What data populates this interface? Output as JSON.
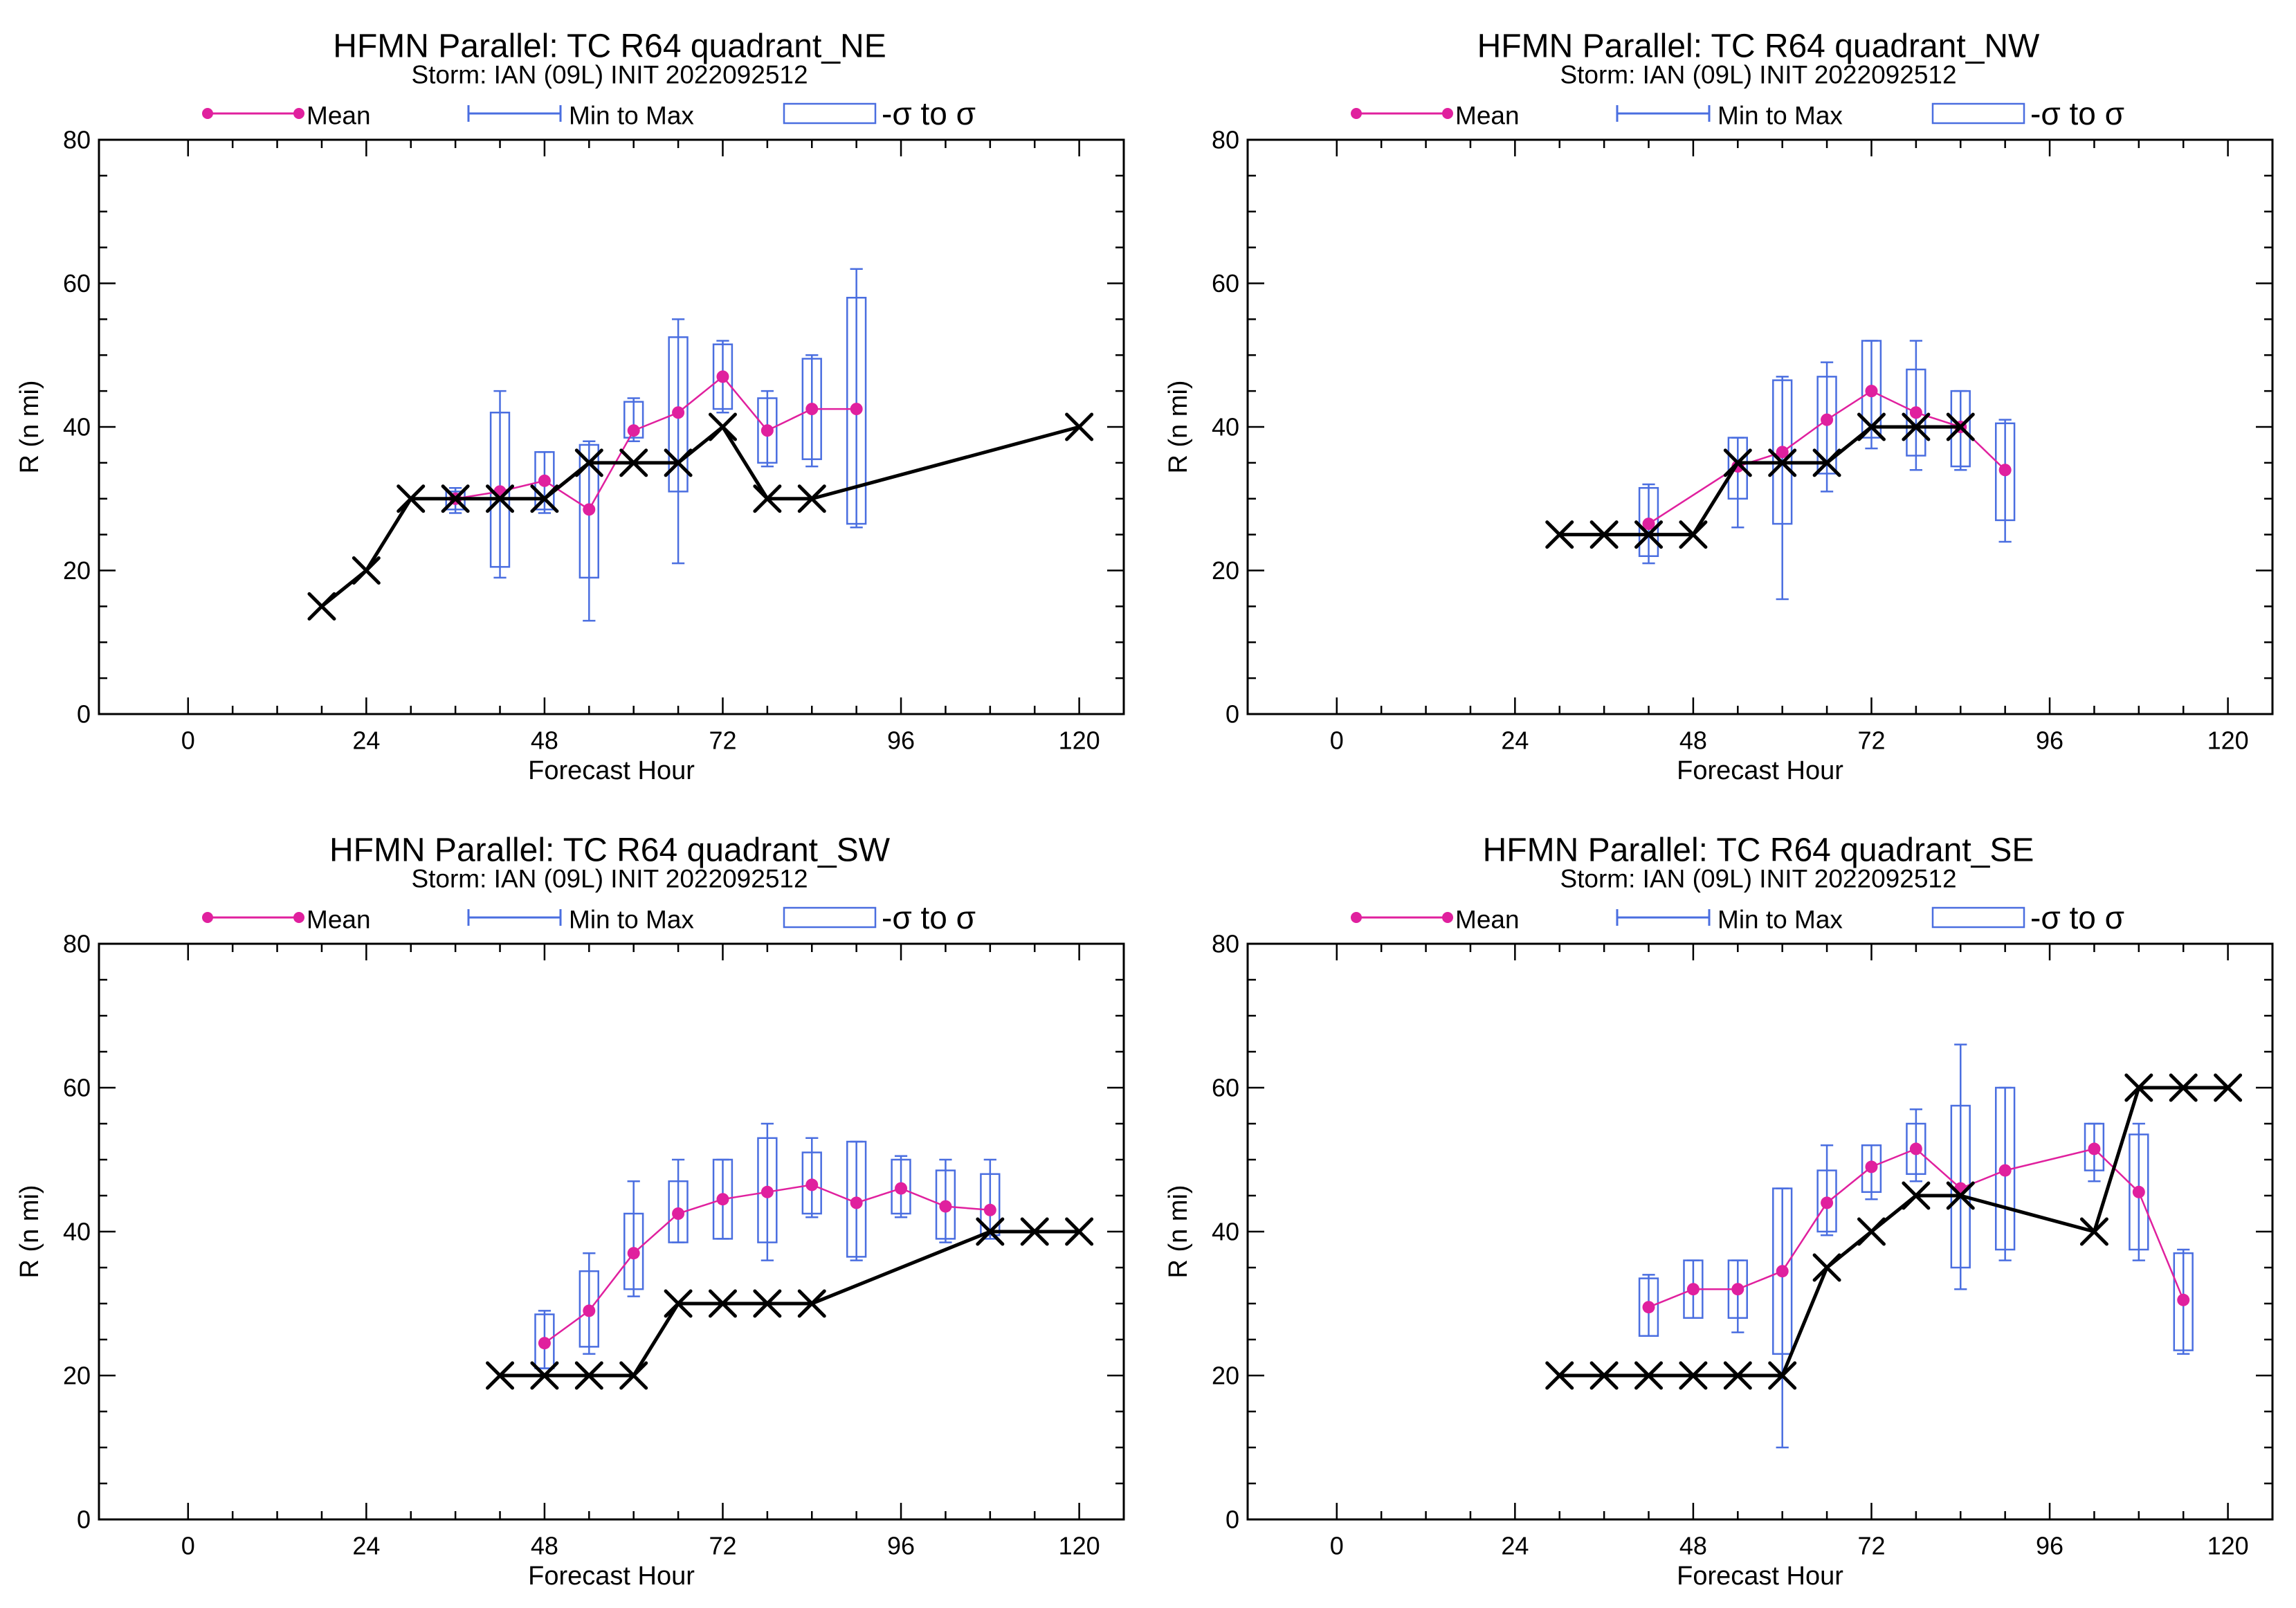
{
  "colors": {
    "mean": "#e0209e",
    "range": "#4a6ee0",
    "observed": "#000000",
    "frame": "#000000"
  },
  "legend": {
    "mean_label": "Mean",
    "range_label": "Min to Max",
    "sigma_label": "-σ to σ"
  },
  "chart_data": [
    {
      "type": "line",
      "title": "HFMN Parallel: TC  R64 quadrant_NE",
      "subtitle": "Storm: IAN (09L) INIT 2022092512",
      "xlabel": "Forecast Hour",
      "ylabel": "R (n mi)",
      "xlim": [
        -12,
        126
      ],
      "ylim": [
        0,
        80
      ],
      "xticks": [
        0,
        24,
        48,
        72,
        96,
        120
      ],
      "yticks": [
        0,
        20,
        40,
        60,
        80
      ],
      "observed": {
        "x": [
          18,
          24,
          30,
          36,
          42,
          48,
          54,
          60,
          66,
          72,
          78,
          84,
          120
        ],
        "y": [
          15,
          20,
          30,
          30,
          30,
          30,
          35,
          35,
          35,
          40,
          30,
          30,
          40
        ]
      },
      "ensemble": {
        "x": [
          36,
          42,
          48,
          54,
          60,
          66,
          72,
          78,
          84,
          90
        ],
        "mean": [
          30,
          31,
          32.5,
          28.5,
          39.5,
          42,
          47,
          39.5,
          42.5,
          42.5
        ],
        "min": [
          28,
          19,
          28,
          13,
          38,
          21,
          42,
          34.5,
          34.5,
          26
        ],
        "max": [
          31.5,
          45,
          36.5,
          38,
          44,
          55,
          52,
          45,
          50,
          62
        ],
        "sd_low": [
          28.5,
          20.5,
          28.5,
          19,
          38.5,
          31,
          42.5,
          35,
          35.5,
          26.5
        ],
        "sd_high": [
          31,
          42,
          36.5,
          37.5,
          43.5,
          52.5,
          51.5,
          44,
          49.5,
          58
        ]
      }
    },
    {
      "type": "line",
      "title": "HFMN Parallel: TC  R64 quadrant_NW",
      "subtitle": "Storm: IAN (09L) INIT 2022092512",
      "xlabel": "Forecast Hour",
      "ylabel": "R (n mi)",
      "xlim": [
        -12,
        126
      ],
      "ylim": [
        0,
        80
      ],
      "xticks": [
        0,
        24,
        48,
        72,
        96,
        120
      ],
      "yticks": [
        0,
        20,
        40,
        60,
        80
      ],
      "observed": {
        "x": [
          30,
          36,
          42,
          48,
          54,
          60,
          66,
          72,
          78,
          84
        ],
        "y": [
          25,
          25,
          25,
          25,
          35,
          35,
          35,
          40,
          40,
          40
        ]
      },
      "ensemble": {
        "x": [
          42,
          54,
          60,
          66,
          72,
          78,
          84,
          90
        ],
        "mean": [
          26.5,
          34.5,
          36.5,
          41,
          45,
          42,
          40,
          34
        ],
        "min": [
          21,
          26,
          16,
          31,
          37,
          34,
          34,
          24
        ],
        "max": [
          32,
          38.5,
          47,
          49,
          52,
          52,
          45,
          41
        ],
        "sd_low": [
          22,
          30,
          26.5,
          33.5,
          38.5,
          36,
          34.5,
          27
        ],
        "sd_high": [
          31.5,
          38.5,
          46.5,
          47,
          52,
          48,
          45,
          40.5
        ]
      }
    },
    {
      "type": "line",
      "title": "HFMN Parallel: TC  R64 quadrant_SW",
      "subtitle": "Storm: IAN (09L) INIT 2022092512",
      "xlabel": "Forecast Hour",
      "ylabel": "R (n mi)",
      "xlim": [
        -12,
        126
      ],
      "ylim": [
        0,
        80
      ],
      "xticks": [
        0,
        24,
        48,
        72,
        96,
        120
      ],
      "yticks": [
        0,
        20,
        40,
        60,
        80
      ],
      "observed": {
        "x": [
          42,
          48,
          54,
          60,
          66,
          72,
          78,
          84,
          108,
          114,
          120
        ],
        "y": [
          20,
          20,
          20,
          20,
          30,
          30,
          30,
          30,
          40,
          40,
          40
        ]
      },
      "ensemble": {
        "x": [
          48,
          54,
          60,
          66,
          72,
          78,
          84,
          90,
          96,
          102,
          108
        ],
        "mean": [
          24.5,
          29,
          37,
          42.5,
          44.5,
          45.5,
          46.5,
          44,
          46,
          43.5,
          43
        ],
        "min": [
          21,
          23,
          31,
          38.5,
          39,
          36,
          42,
          36,
          42,
          38.5,
          39
        ],
        "max": [
          29,
          37,
          47,
          50,
          50,
          55,
          53,
          52.5,
          50.5,
          50,
          50
        ],
        "sd_low": [
          21,
          24,
          32,
          38.5,
          39,
          38.5,
          42.5,
          36.5,
          42.5,
          39,
          39.5
        ],
        "sd_high": [
          28.5,
          34.5,
          42.5,
          47,
          50,
          53,
          51,
          52.5,
          50,
          48.5,
          48
        ]
      }
    },
    {
      "type": "line",
      "title": "HFMN Parallel: TC  R64 quadrant_SE",
      "subtitle": "Storm: IAN (09L) INIT 2022092512",
      "xlabel": "Forecast Hour",
      "ylabel": "R (n mi)",
      "xlim": [
        -12,
        126
      ],
      "ylim": [
        0,
        80
      ],
      "xticks": [
        0,
        24,
        48,
        72,
        96,
        120
      ],
      "yticks": [
        0,
        20,
        40,
        60,
        80
      ],
      "observed": {
        "x": [
          30,
          36,
          42,
          48,
          54,
          60,
          66,
          72,
          78,
          84,
          102,
          108,
          114,
          120
        ],
        "y": [
          20,
          20,
          20,
          20,
          20,
          20,
          35,
          40,
          45,
          45,
          40,
          60,
          60,
          60
        ]
      },
      "ensemble": {
        "x": [
          42,
          48,
          54,
          60,
          66,
          72,
          78,
          84,
          90,
          102,
          108,
          114
        ],
        "mean": [
          29.5,
          32,
          32,
          34.5,
          44,
          49,
          51.5,
          46,
          48.5,
          51.5,
          45.5,
          30.5
        ],
        "min": [
          25.5,
          28,
          26,
          10,
          39.5,
          44.5,
          47,
          32,
          36,
          47,
          36,
          23
        ],
        "max": [
          34,
          36,
          36,
          46,
          52,
          52,
          57,
          66,
          60,
          55,
          55,
          37.5
        ],
        "sd_low": [
          25.5,
          28,
          28,
          23,
          40,
          45.5,
          48,
          35,
          37.5,
          48.5,
          37.5,
          23.5
        ],
        "sd_high": [
          33.5,
          36,
          36,
          46,
          48.5,
          52,
          55,
          57.5,
          60,
          55,
          53.5,
          37
        ]
      }
    }
  ]
}
